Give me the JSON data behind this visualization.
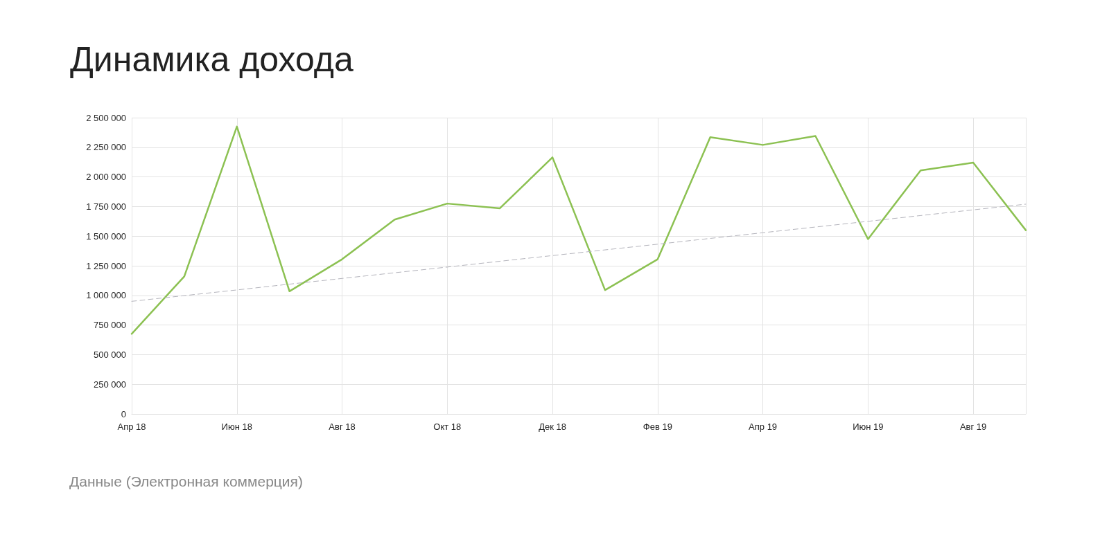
{
  "chart_data": {
    "type": "line",
    "title": "Динамика дохода",
    "annotations": [
      "Данные (Электронная коммерция)"
    ],
    "categories": [
      "Апр 18",
      null,
      "Июн 18",
      null,
      "Авг 18",
      null,
      "Окт 18",
      null,
      "Дек 18",
      null,
      "Фев 19",
      null,
      "Апр 19",
      null,
      "Июн 19",
      null,
      "Авг 19",
      null
    ],
    "series": [
      {
        "color": "#8cc152",
        "values": [
          675000,
          1160000,
          2425000,
          1035000,
          1305000,
          1640000,
          1775000,
          1735000,
          2165000,
          1045000,
          1305000,
          2335000,
          2270000,
          2345000,
          1475000,
          2055000,
          2120000,
          1550000
        ]
      },
      {
        "color": "#b4b4bc",
        "line_style": "dashed",
        "values": [
          950000,
          998000,
          1046000,
          1095000,
          1143000,
          1191000,
          1239000,
          1288000,
          1336000,
          1384000,
          1432000,
          1481000,
          1529000,
          1577000,
          1625000,
          1674000,
          1722000,
          1770000
        ]
      }
    ],
    "ylim": [
      0,
      2500000
    ],
    "yticks": [
      0,
      {
        "value": 250000,
        "label": "250 000"
      },
      {
        "value": 500000,
        "label": "500 000"
      },
      {
        "value": 750000,
        "label": "750 000"
      },
      {
        "value": 1000000,
        "label": "1 000 000"
      },
      {
        "value": 1250000,
        "label": "1 250 000"
      },
      {
        "value": 1500000,
        "label": "1 500 000"
      },
      {
        "value": 1750000,
        "label": "1 750 000"
      },
      {
        "value": 2000000,
        "label": "2 000 000"
      },
      {
        "value": 2250000,
        "label": "2 250 000"
      },
      {
        "value": 2500000,
        "label": "2 500 000"
      }
    ],
    "grid": true,
    "marker": "none",
    "line_style": "solid"
  }
}
